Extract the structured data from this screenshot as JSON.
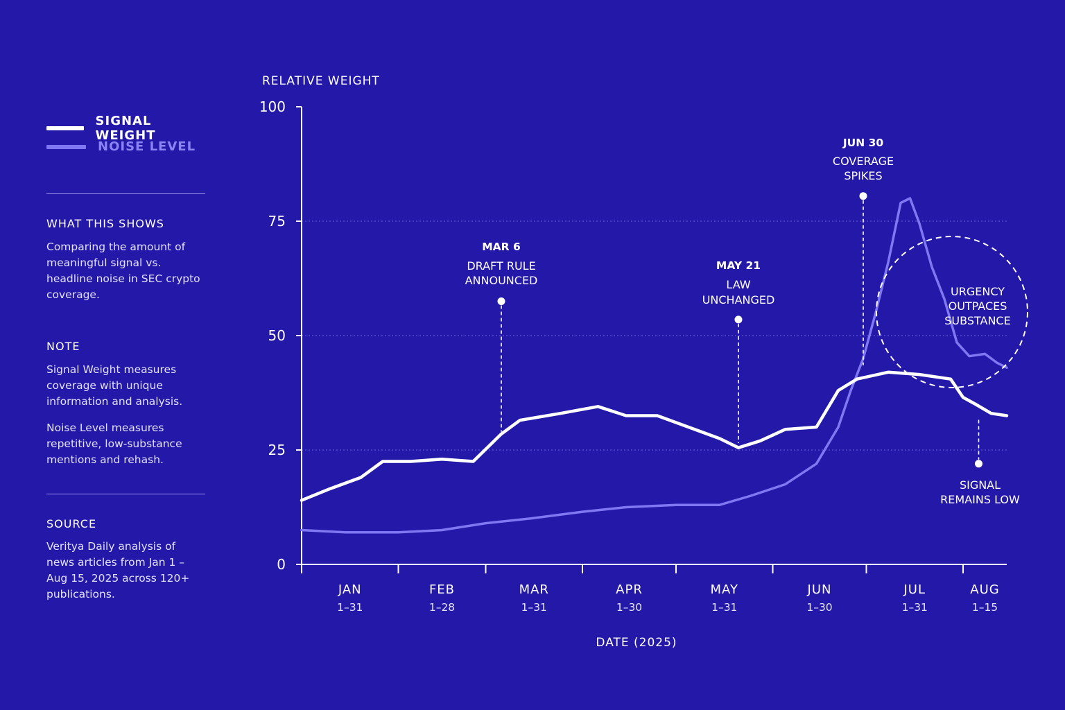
{
  "colors": {
    "background": "#2318a8",
    "signal": "#ffffff",
    "noise": "#8078f2"
  },
  "legend": {
    "signal_label": "SIGNAL WEIGHT",
    "noise_label": "NOISE LEVEL"
  },
  "sidebar": {
    "what_title": "WHAT THIS SHOWS",
    "what_body": "Comparing the amount of meaningful signal vs. headline noise in SEC crypto coverage.",
    "note_title": "NOTE",
    "note_body_1": "Signal Weight measures coverage with unique information and analysis.",
    "note_body_2": "Noise Level measures repetitive, low-substance mentions and rehash.",
    "source_title": "SOURCE",
    "source_body": "Veritya Daily analysis of news articles from Jan 1 – Aug 15, 2025 across 120+ publications."
  },
  "chart_data": {
    "type": "line",
    "ylabel": "RELATIVE WEIGHT",
    "xlabel": "DATE (2025)",
    "ylim": [
      0,
      100
    ],
    "yticks": [
      "0",
      "25",
      "50",
      "75",
      "100"
    ],
    "grid": "dotted at 25, 50, 75",
    "months": [
      {
        "name": "JAN",
        "range": "1–31"
      },
      {
        "name": "FEB",
        "range": "1–28"
      },
      {
        "name": "MAR",
        "range": "1–31"
      },
      {
        "name": "APR",
        "range": "1–30"
      },
      {
        "name": "MAY",
        "range": "1–31"
      },
      {
        "name": "JUN",
        "range": "1–30"
      },
      {
        "name": "JUL",
        "range": "1–31"
      },
      {
        "name": "AUG",
        "range": "1–15"
      }
    ],
    "series": [
      {
        "name": "SIGNAL WEIGHT",
        "color": "#ffffff",
        "points": [
          [
            "2025-01-01",
            14
          ],
          [
            "2025-01-10",
            16.5
          ],
          [
            "2025-01-20",
            19
          ],
          [
            "2025-01-27",
            22.5
          ],
          [
            "2025-02-05",
            22.5
          ],
          [
            "2025-02-15",
            23
          ],
          [
            "2025-02-25",
            22.5
          ],
          [
            "2025-03-06",
            28.5
          ],
          [
            "2025-03-12",
            31.5
          ],
          [
            "2025-03-25",
            33
          ],
          [
            "2025-04-06",
            34.5
          ],
          [
            "2025-04-15",
            32.5
          ],
          [
            "2025-04-25",
            32.5
          ],
          [
            "2025-05-05",
            30
          ],
          [
            "2025-05-15",
            27.5
          ],
          [
            "2025-05-21",
            25.5
          ],
          [
            "2025-05-28",
            27
          ],
          [
            "2025-06-05",
            29.5
          ],
          [
            "2025-06-15",
            30
          ],
          [
            "2025-06-22",
            38
          ],
          [
            "2025-06-28",
            40.5
          ],
          [
            "2025-07-08",
            42
          ],
          [
            "2025-07-18",
            41.5
          ],
          [
            "2025-07-28",
            40.5
          ],
          [
            "2025-08-01",
            36.5
          ],
          [
            "2025-08-05",
            35
          ],
          [
            "2025-08-10",
            33
          ],
          [
            "2025-08-15",
            32.5
          ]
        ]
      },
      {
        "name": "NOISE LEVEL",
        "color": "#8078f2",
        "points": [
          [
            "2025-01-01",
            7.5
          ],
          [
            "2025-01-15",
            7
          ],
          [
            "2025-02-01",
            7
          ],
          [
            "2025-02-15",
            7.5
          ],
          [
            "2025-03-01",
            9
          ],
          [
            "2025-03-15",
            10
          ],
          [
            "2025-04-01",
            11.5
          ],
          [
            "2025-04-15",
            12.5
          ],
          [
            "2025-05-01",
            13
          ],
          [
            "2025-05-15",
            13
          ],
          [
            "2025-05-25",
            15
          ],
          [
            "2025-06-05",
            17.5
          ],
          [
            "2025-06-15",
            22
          ],
          [
            "2025-06-22",
            30
          ],
          [
            "2025-06-26",
            38
          ],
          [
            "2025-06-30",
            45
          ],
          [
            "2025-07-04",
            55
          ],
          [
            "2025-07-08",
            66
          ],
          [
            "2025-07-12",
            79
          ],
          [
            "2025-07-15",
            80
          ],
          [
            "2025-07-18",
            74.5
          ],
          [
            "2025-07-22",
            65
          ],
          [
            "2025-07-26",
            58
          ],
          [
            "2025-07-30",
            48.5
          ],
          [
            "2025-08-03",
            45.5
          ],
          [
            "2025-08-08",
            46
          ],
          [
            "2025-08-12",
            44
          ],
          [
            "2025-08-15",
            43
          ]
        ]
      }
    ],
    "annotations": [
      {
        "date": "MAR 6",
        "text_1": "DRAFT RULE",
        "text_2": "ANNOUNCED",
        "value": 57.5
      },
      {
        "date": "MAY 21",
        "text_1": "LAW",
        "text_2": "UNCHANGED",
        "value": 53.5
      },
      {
        "date": "JUN 30",
        "text_1": "COVERAGE",
        "text_2": "SPIKES",
        "value": 80.5
      },
      {
        "text_1": "SIGNAL",
        "text_2": "REMAINS LOW",
        "value": 22
      },
      {
        "text_1": "URGENCY",
        "text_2": "OUTPACES",
        "text_3": "SUBSTANCE"
      }
    ]
  }
}
